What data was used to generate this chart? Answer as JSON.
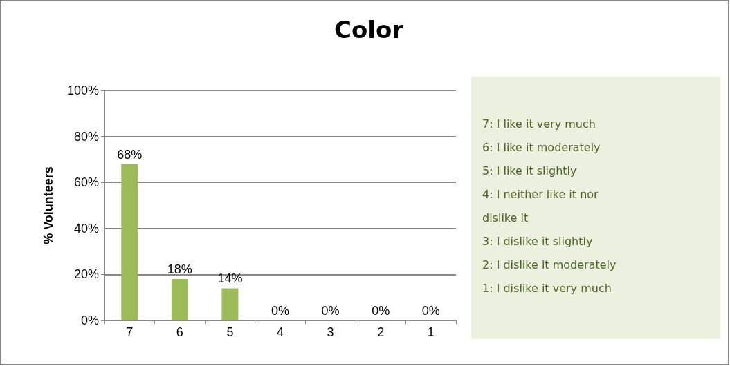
{
  "chart_data": {
    "type": "bar",
    "title": "Color",
    "ylabel": "% Volunteers",
    "categories": [
      "7",
      "6",
      "5",
      "4",
      "3",
      "2",
      "1"
    ],
    "values": [
      68,
      18,
      14,
      0,
      0,
      0,
      0
    ],
    "value_labels": [
      "68%",
      "18%",
      "14%",
      "0%",
      "0%",
      "0%",
      "0%"
    ],
    "color": "#9bbb59",
    "ylim": [
      0,
      100
    ],
    "yticks": [
      {
        "value": 0,
        "label": "0%"
      },
      {
        "value": 20,
        "label": "20%"
      },
      {
        "value": 40,
        "label": "40%"
      },
      {
        "value": 60,
        "label": "60%"
      },
      {
        "value": 80,
        "label": "80%"
      },
      {
        "value": 100,
        "label": "100%"
      }
    ],
    "grid": "y",
    "annotations": [
      "7: I like it very much",
      "6: I like it moderately",
      "5: I like it slightly",
      "4: I neither like it nor dislike it",
      "3: I dislike it slightly",
      "2: I dislike it moderately",
      "1: I dislike it very much"
    ]
  }
}
